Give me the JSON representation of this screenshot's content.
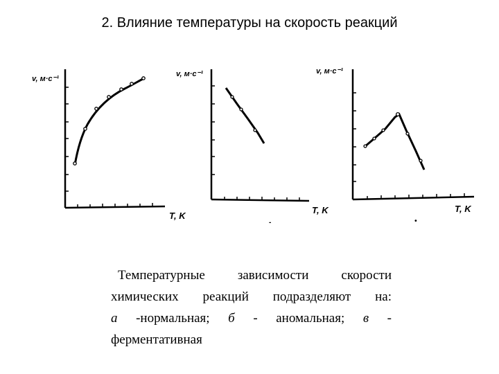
{
  "slide": {
    "title": "2. Влияние температуры на скорость реакций"
  },
  "caption": {
    "line1": "Температурные зависимости скорости",
    "line2": "химических реакций подразделяют на:",
    "line3_a": "а",
    "line3_a_text": " -нормальная; ",
    "line3_b": "б",
    "line3_b_text": " - аномальная; ",
    "line3_c": "в",
    "line3_c_text": " -",
    "line4": "ферментативная"
  },
  "chart_data": [
    {
      "type": "line",
      "ylabel": "v, м·с⁻¹",
      "xlabel": "T, K",
      "x": [
        0.05,
        0.1,
        0.2,
        0.3,
        0.4,
        0.5,
        0.6,
        0.7,
        0.8,
        0.9
      ],
      "y": [
        0.25,
        0.38,
        0.53,
        0.62,
        0.69,
        0.74,
        0.78,
        0.81,
        0.84,
        0.86
      ],
      "shape": "increasing-saturating"
    },
    {
      "type": "line",
      "ylabel": "v, м·с⁻¹",
      "xlabel": "T, K",
      "x": [
        0.1,
        0.2,
        0.3,
        0.4,
        0.5
      ],
      "y": [
        0.85,
        0.75,
        0.65,
        0.55,
        0.45
      ],
      "shape": "decreasing"
    },
    {
      "type": "line",
      "ylabel": "v, м·с⁻¹",
      "xlabel": "T, K",
      "x": [
        0.1,
        0.2,
        0.3,
        0.4,
        0.5,
        0.6,
        0.7
      ],
      "y": [
        0.5,
        0.55,
        0.62,
        0.68,
        0.6,
        0.4,
        0.25
      ],
      "shape": "rise-then-fall"
    }
  ]
}
